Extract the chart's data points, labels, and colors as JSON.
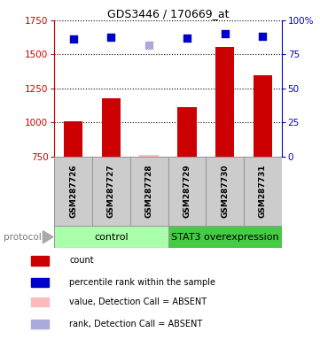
{
  "title": "GDS3446 / 170669_at",
  "samples": [
    "GSM287726",
    "GSM287727",
    "GSM287728",
    "GSM287729",
    "GSM287730",
    "GSM287731"
  ],
  "bar_values": [
    1010,
    1175,
    null,
    1115,
    1555,
    1345
  ],
  "bar_absent": [
    null,
    null,
    758,
    null,
    null,
    null
  ],
  "dot_values": [
    1615,
    1625,
    null,
    1620,
    1655,
    1630
  ],
  "dot_absent": [
    null,
    null,
    1565,
    null,
    null,
    null
  ],
  "ylim_left": [
    750,
    1750
  ],
  "ylim_right": [
    0,
    100
  ],
  "yticks_left": [
    750,
    1000,
    1250,
    1500,
    1750
  ],
  "yticks_right": [
    0,
    25,
    50,
    75,
    100
  ],
  "bar_color": "#cc0000",
  "bar_absent_color": "#ffbbbb",
  "dot_color": "#0000cc",
  "dot_absent_color": "#aaaadd",
  "control_label": "control",
  "overexpression_label": "STAT3 overexpression",
  "control_bg": "#aaffaa",
  "overexpression_bg": "#44cc44",
  "protocol_label": "protocol",
  "legend_items": [
    {
      "color": "#cc0000",
      "label": "count"
    },
    {
      "color": "#0000cc",
      "label": "percentile rank within the sample"
    },
    {
      "color": "#ffbbbb",
      "label": "value, Detection Call = ABSENT"
    },
    {
      "color": "#aaaadd",
      "label": "rank, Detection Call = ABSENT"
    }
  ],
  "sample_box_color": "#cccccc",
  "left_axis_color": "#cc0000",
  "right_axis_color": "#0000cc",
  "background_color": "#ffffff"
}
